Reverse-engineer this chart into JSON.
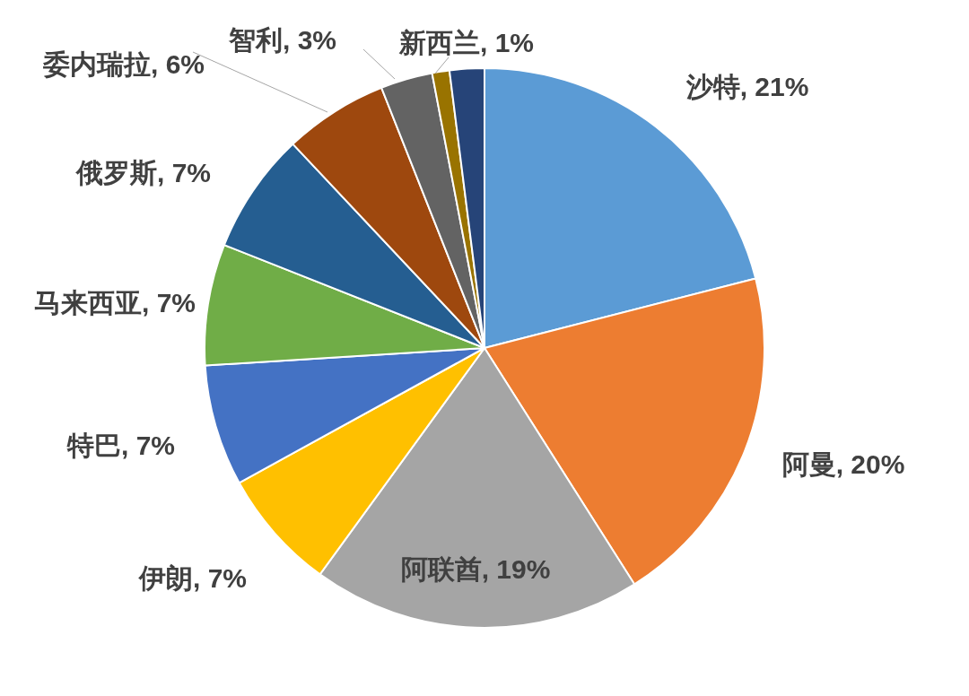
{
  "chart_data": {
    "type": "pie",
    "categories": [
      "沙特",
      "阿曼",
      "阿联酋",
      "伊朗",
      "特巴",
      "马来西亚",
      "俄罗斯",
      "委内瑞拉",
      "智利",
      "新西兰",
      null
    ],
    "values": [
      21,
      20,
      19,
      7,
      7,
      7,
      7,
      6,
      3,
      1,
      2
    ],
    "value_labels": [
      "21%",
      "20%",
      "19%",
      "7%",
      "7%",
      "7%",
      "7%",
      "6%",
      "3%",
      "1%",
      null
    ],
    "colors": [
      "#5b9bd5",
      "#ed7d31",
      "#a5a5a5",
      "#ffc000",
      "#4472c4",
      "#70ad47",
      "#255e91",
      "#9e480e",
      "#636363",
      "#997300",
      "#264478"
    ],
    "legend": false
  }
}
